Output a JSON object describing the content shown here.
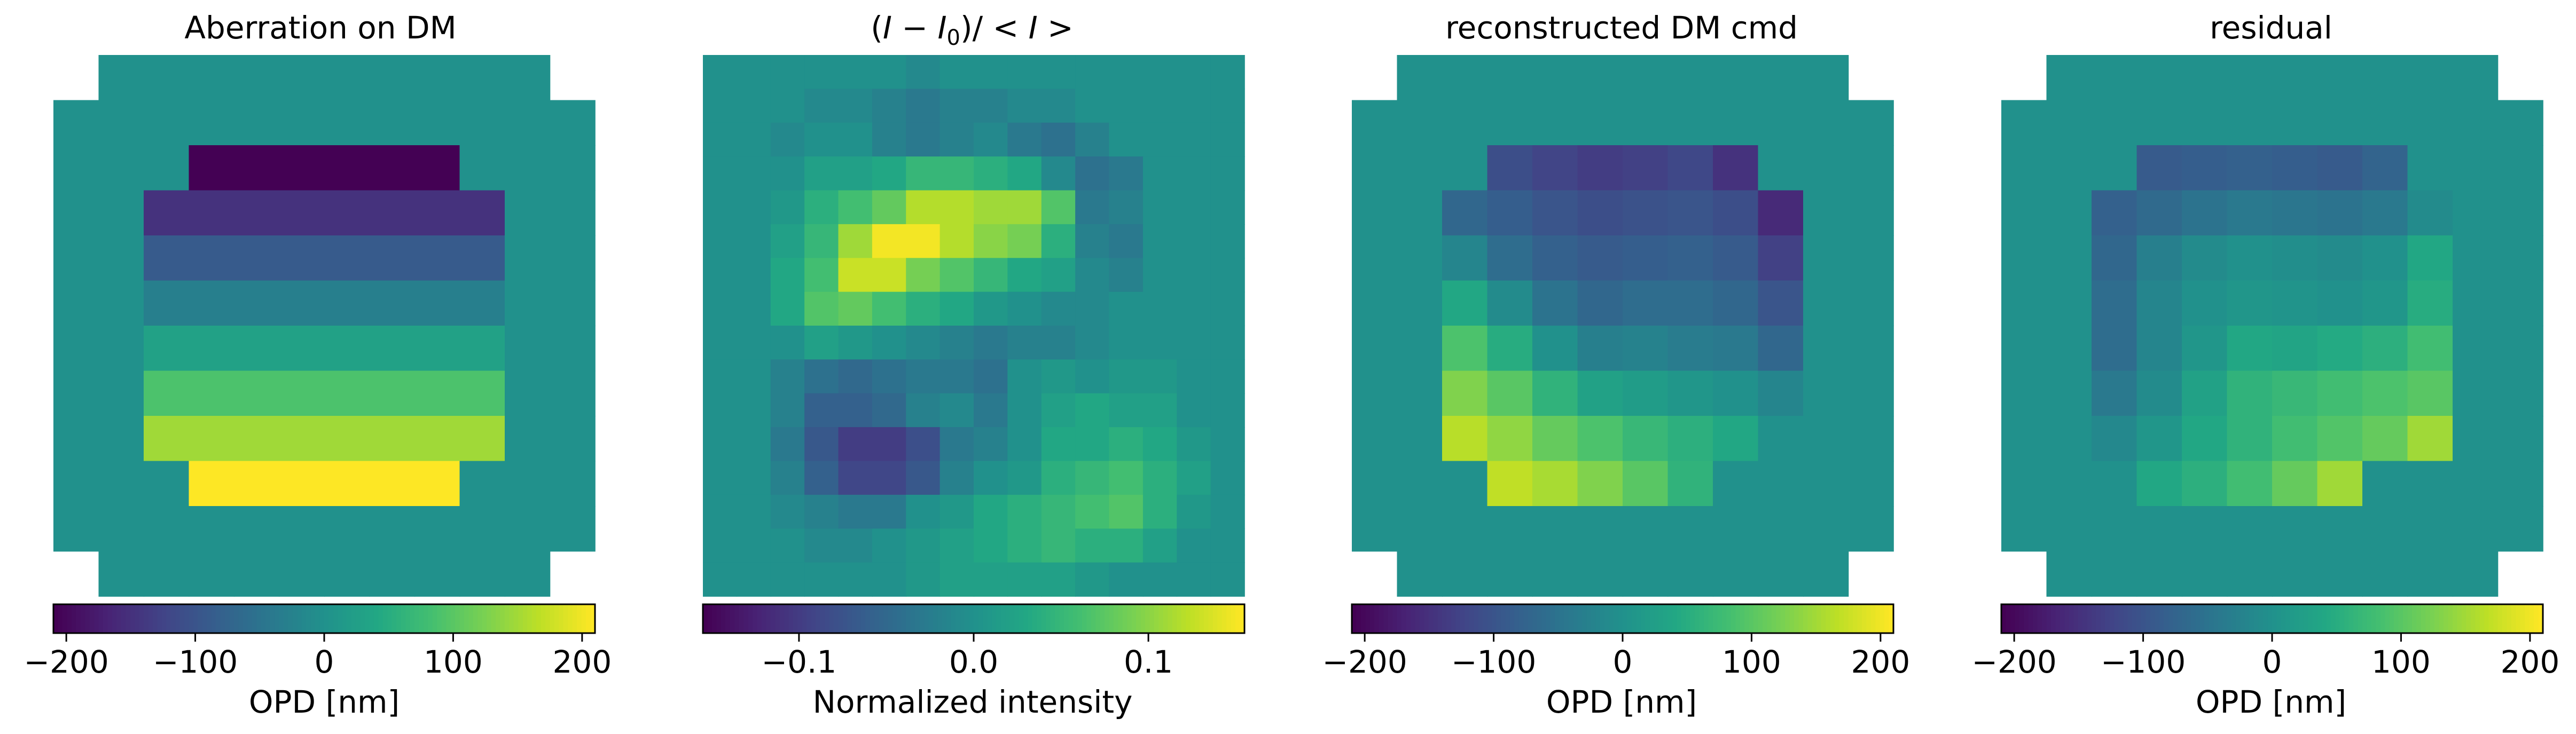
{
  "chart_data": [
    {
      "type": "heatmap",
      "title": "Aberration on DM",
      "colormap": "viridis",
      "grid_size": 12,
      "colorbar": {
        "label": "OPD [nm]",
        "range": [
          -210,
          210
        ],
        "ticks": [
          -200,
          -100,
          0,
          100,
          200
        ],
        "tick_labels": [
          "−200",
          "−100",
          "0",
          "100",
          "200"
        ]
      },
      "masked_corners": "2x2 pupil corners and 1-pixel edge corners are zero-valued",
      "values": [
        [
          null,
          0,
          0,
          0,
          0,
          0,
          0,
          0,
          0,
          0,
          0,
          null
        ],
        [
          0,
          0,
          0,
          0,
          0,
          0,
          0,
          0,
          0,
          0,
          0,
          0
        ],
        [
          0,
          0,
          0,
          -210,
          -210,
          -210,
          -210,
          -210,
          -210,
          0,
          0,
          0
        ],
        [
          0,
          0,
          -150,
          -150,
          -150,
          -150,
          -150,
          -150,
          -150,
          -150,
          0,
          0
        ],
        [
          0,
          0,
          -90,
          -90,
          -90,
          -90,
          -90,
          -90,
          -90,
          -90,
          0,
          0
        ],
        [
          0,
          0,
          -30,
          -30,
          -30,
          -30,
          -30,
          -30,
          -30,
          -30,
          0,
          0
        ],
        [
          0,
          0,
          30,
          30,
          30,
          30,
          30,
          30,
          30,
          30,
          0,
          0
        ],
        [
          0,
          0,
          90,
          90,
          90,
          90,
          90,
          90,
          90,
          90,
          0,
          0
        ],
        [
          0,
          0,
          150,
          150,
          150,
          150,
          150,
          150,
          150,
          150,
          0,
          0
        ],
        [
          0,
          0,
          0,
          210,
          210,
          210,
          210,
          210,
          210,
          0,
          0,
          0
        ],
        [
          0,
          0,
          0,
          0,
          0,
          0,
          0,
          0,
          0,
          0,
          0,
          0
        ],
        [
          null,
          0,
          0,
          0,
          0,
          0,
          0,
          0,
          0,
          0,
          0,
          null
        ]
      ]
    },
    {
      "type": "heatmap",
      "title": "(I − I0)/<I>",
      "title_parts": {
        "open": "(",
        "I": "I",
        "minus": " − ",
        "I0": "I",
        "sub": "0",
        "mid": ")/ < ",
        "I2": "I",
        "close": " >"
      },
      "colormap": "viridis",
      "grid_size": 16,
      "colorbar": {
        "label": "Normalized intensity",
        "range": [
          -0.155,
          0.155
        ],
        "ticks": [
          -0.1,
          0.0,
          0.1
        ],
        "tick_labels": [
          "−0.1",
          "0.0",
          "0.1"
        ]
      },
      "values": [
        [
          0.0,
          0.0,
          0.0,
          0.0,
          0.0,
          0.0,
          -0.01,
          0.0,
          0.0,
          0.0,
          0.0,
          0.0,
          0.0,
          0.0,
          0.0,
          0.0
        ],
        [
          0.0,
          0.0,
          0.0,
          -0.01,
          -0.01,
          -0.02,
          -0.03,
          -0.02,
          -0.02,
          -0.01,
          -0.01,
          0.0,
          0.0,
          0.0,
          0.0,
          0.0
        ],
        [
          0.0,
          0.0,
          -0.01,
          0.0,
          0.0,
          -0.02,
          -0.03,
          -0.02,
          -0.01,
          -0.03,
          -0.04,
          -0.02,
          0.0,
          0.0,
          0.0,
          0.0
        ],
        [
          0.0,
          0.0,
          0.0,
          0.02,
          0.02,
          0.03,
          0.05,
          0.05,
          0.04,
          0.03,
          -0.01,
          -0.04,
          -0.03,
          0.0,
          0.0,
          0.0
        ],
        [
          0.0,
          0.0,
          0.01,
          0.04,
          0.06,
          0.08,
          0.12,
          0.12,
          0.11,
          0.11,
          0.07,
          -0.03,
          -0.02,
          0.0,
          0.0,
          0.0
        ],
        [
          0.0,
          0.0,
          0.02,
          0.05,
          0.11,
          0.15,
          0.15,
          0.12,
          0.1,
          0.09,
          0.04,
          -0.02,
          -0.03,
          0.0,
          0.0,
          0.0
        ],
        [
          0.0,
          0.0,
          0.03,
          0.06,
          0.13,
          0.13,
          0.09,
          0.07,
          0.05,
          0.03,
          0.02,
          -0.01,
          -0.02,
          0.0,
          0.0,
          0.0
        ],
        [
          0.0,
          0.0,
          0.03,
          0.07,
          0.08,
          0.06,
          0.04,
          0.03,
          0.01,
          0.0,
          -0.01,
          -0.01,
          0.0,
          0.0,
          0.0,
          0.0
        ],
        [
          0.0,
          0.0,
          0.0,
          0.02,
          0.01,
          0.0,
          -0.01,
          -0.02,
          -0.03,
          -0.02,
          -0.02,
          -0.01,
          0.0,
          0.0,
          0.0,
          0.0
        ],
        [
          0.0,
          0.0,
          -0.02,
          -0.04,
          -0.05,
          -0.04,
          -0.03,
          -0.03,
          -0.04,
          0.0,
          0.01,
          0.0,
          0.01,
          0.01,
          0.0,
          0.0
        ],
        [
          0.0,
          0.0,
          -0.02,
          -0.06,
          -0.06,
          -0.05,
          -0.02,
          -0.01,
          -0.03,
          0.0,
          0.02,
          0.03,
          0.02,
          0.02,
          0.0,
          0.0
        ],
        [
          0.0,
          0.0,
          -0.03,
          -0.07,
          -0.1,
          -0.1,
          -0.08,
          -0.03,
          -0.02,
          0.0,
          0.03,
          0.03,
          0.04,
          0.03,
          0.01,
          0.0
        ],
        [
          0.0,
          0.0,
          -0.02,
          -0.06,
          -0.09,
          -0.09,
          -0.07,
          -0.02,
          0.0,
          0.01,
          0.04,
          0.05,
          0.06,
          0.04,
          0.02,
          0.0
        ],
        [
          0.0,
          0.0,
          -0.01,
          -0.02,
          -0.03,
          -0.03,
          0.0,
          0.01,
          0.03,
          0.04,
          0.05,
          0.06,
          0.07,
          0.04,
          0.01,
          0.0
        ],
        [
          0.0,
          0.0,
          0.0,
          -0.01,
          -0.01,
          0.0,
          0.01,
          0.02,
          0.03,
          0.04,
          0.05,
          0.04,
          0.04,
          0.02,
          0.0,
          0.0
        ],
        [
          0.0,
          0.0,
          0.0,
          0.0,
          0.0,
          0.0,
          0.01,
          0.02,
          0.02,
          0.02,
          0.02,
          0.01,
          0.0,
          0.0,
          0.0,
          0.0
        ]
      ]
    },
    {
      "type": "heatmap",
      "title": "reconstructed DM cmd",
      "colormap": "viridis",
      "grid_size": 12,
      "colorbar": {
        "label": "OPD [nm]",
        "range": [
          -210,
          210
        ],
        "ticks": [
          -200,
          -100,
          0,
          100,
          200
        ],
        "tick_labels": [
          "−200",
          "−100",
          "0",
          "100",
          "200"
        ]
      },
      "values": [
        [
          null,
          0,
          0,
          0,
          0,
          0,
          0,
          0,
          0,
          0,
          0,
          null
        ],
        [
          0,
          0,
          0,
          0,
          0,
          0,
          0,
          0,
          0,
          0,
          0,
          0
        ],
        [
          0,
          0,
          0,
          -110,
          -125,
          -135,
          -130,
          -120,
          -150,
          0,
          0,
          0
        ],
        [
          0,
          0,
          -70,
          -85,
          -100,
          -110,
          -105,
          -100,
          -110,
          -160,
          0,
          0
        ],
        [
          0,
          0,
          -20,
          -60,
          -80,
          -90,
          -85,
          -80,
          -90,
          -130,
          0,
          0
        ],
        [
          0,
          0,
          40,
          -10,
          -50,
          -70,
          -60,
          -60,
          -70,
          -100,
          0,
          0
        ],
        [
          0,
          0,
          90,
          50,
          0,
          -30,
          -25,
          -35,
          -40,
          -70,
          0,
          0
        ],
        [
          0,
          0,
          130,
          100,
          60,
          30,
          20,
          10,
          0,
          -20,
          0,
          0
        ],
        [
          0,
          0,
          165,
          140,
          110,
          90,
          70,
          55,
          40,
          0,
          0,
          0
        ],
        [
          0,
          0,
          0,
          170,
          155,
          130,
          100,
          60,
          0,
          0,
          0,
          0
        ],
        [
          0,
          0,
          0,
          0,
          0,
          0,
          0,
          0,
          0,
          0,
          0,
          0
        ],
        [
          null,
          0,
          0,
          0,
          0,
          0,
          0,
          0,
          0,
          0,
          0,
          null
        ]
      ]
    },
    {
      "type": "heatmap",
      "title": "residual",
      "colormap": "viridis",
      "grid_size": 12,
      "colorbar": {
        "label": "OPD [nm]",
        "range": [
          -210,
          210
        ],
        "ticks": [
          -200,
          -100,
          0,
          100,
          200
        ],
        "tick_labels": [
          "−200",
          "−100",
          "0",
          "100",
          "200"
        ]
      },
      "values": [
        [
          null,
          0,
          0,
          0,
          0,
          0,
          0,
          0,
          0,
          0,
          0,
          null
        ],
        [
          0,
          0,
          0,
          0,
          0,
          0,
          0,
          0,
          0,
          0,
          0,
          0
        ],
        [
          0,
          0,
          0,
          -90,
          -85,
          -80,
          -85,
          -90,
          -75,
          0,
          0,
          0
        ],
        [
          0,
          0,
          -80,
          -65,
          -50,
          -40,
          -45,
          -50,
          -40,
          -10,
          0,
          0
        ],
        [
          0,
          0,
          -70,
          -30,
          -10,
          0,
          -5,
          -10,
          0,
          40,
          0,
          0
        ],
        [
          0,
          0,
          -60,
          -20,
          0,
          10,
          5,
          0,
          10,
          50,
          0,
          0
        ],
        [
          0,
          0,
          -60,
          -20,
          10,
          40,
          35,
          45,
          55,
          80,
          0,
          0
        ],
        [
          0,
          0,
          -40,
          -10,
          30,
          60,
          70,
          80,
          90,
          100,
          0,
          0
        ],
        [
          0,
          0,
          -15,
          10,
          40,
          60,
          80,
          95,
          110,
          150,
          0,
          0
        ],
        [
          0,
          0,
          0,
          40,
          55,
          80,
          110,
          150,
          0,
          0,
          0,
          0
        ],
        [
          0,
          0,
          0,
          0,
          0,
          0,
          0,
          0,
          0,
          0,
          0,
          0
        ],
        [
          null,
          0,
          0,
          0,
          0,
          0,
          0,
          0,
          0,
          0,
          0,
          null
        ]
      ]
    }
  ]
}
